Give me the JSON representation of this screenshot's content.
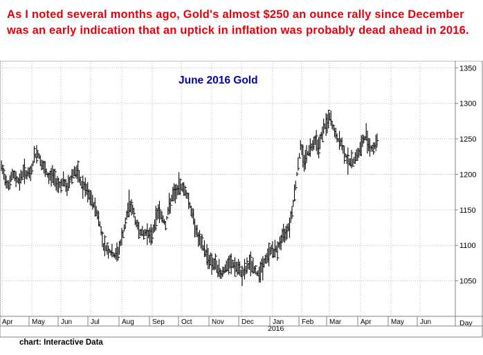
{
  "headline": "As I noted several months ago, Gold's almost $250 an ounce rally since December was an early indication that an uptick in inflation was probably dead ahead in 2016.",
  "credit": "chart: Interactive Data",
  "chart_data": {
    "type": "ohlc-bar",
    "title": "June 2016 Gold",
    "x_axis_unit_label": "Day",
    "year_label": "2016",
    "months": [
      "Apr",
      "May",
      "Jun",
      "Jul",
      "Aug",
      "Sep",
      "Oct",
      "Nov",
      "Dec",
      "Jan",
      "Feb",
      "Mar",
      "Apr",
      "May",
      "Jun"
    ],
    "y_ticks": [
      1050,
      1100,
      1150,
      1200,
      1250,
      1300,
      1350
    ],
    "ylim": [
      1000,
      1360
    ],
    "grid": true,
    "series": [
      {
        "name": "",
        "x": [
          0,
          0.5,
          1,
          1.5,
          2,
          2.5,
          3,
          3.5
        ],
        "y": [
          1210,
          1195,
          1185,
          1200,
          1195,
          1190,
          1205,
          1200
        ]
      },
      {
        "name": "",
        "x": [
          4,
          4.5,
          5,
          5.5,
          6,
          6.5,
          7,
          7.5
        ],
        "y": [
          1200,
          1225,
          1230,
          1215,
          1205,
          1195,
          1200,
          1190
        ]
      },
      {
        "name": "",
        "x": [
          8,
          8.5,
          9,
          9.5,
          10,
          10.5,
          11,
          11.5
        ],
        "y": [
          1185,
          1190,
          1180,
          1195,
          1205,
          1200,
          1185,
          1180
        ]
      },
      {
        "name": "",
        "x": [
          12,
          12.5,
          13,
          13.5,
          14,
          14.5,
          15,
          15.5
        ],
        "y": [
          1170,
          1160,
          1150,
          1130,
          1100,
          1095,
          1090,
          1085
        ]
      },
      {
        "name": "",
        "x": [
          16,
          16.5,
          17,
          17.5,
          18,
          18.5,
          19,
          19.5
        ],
        "y": [
          1090,
          1110,
          1130,
          1160,
          1150,
          1130,
          1120,
          1115
        ]
      },
      {
        "name": "",
        "x": [
          20,
          20.5,
          21,
          21.5,
          22,
          22.5,
          23,
          23.5
        ],
        "y": [
          1120,
          1110,
          1130,
          1150,
          1140,
          1130,
          1155,
          1170
        ]
      },
      {
        "name": "",
        "x": [
          24,
          24.5,
          25,
          25.5,
          26,
          26.5,
          27,
          27.5
        ],
        "y": [
          1175,
          1185,
          1180,
          1170,
          1150,
          1130,
          1110,
          1100
        ]
      },
      {
        "name": "",
        "x": [
          28,
          28.5,
          29,
          29.5,
          30,
          30.5,
          31,
          31.5
        ],
        "y": [
          1090,
          1080,
          1075,
          1070,
          1060,
          1065,
          1070,
          1075
        ]
      },
      {
        "name": "",
        "x": [
          32,
          32.5,
          33,
          33.5,
          34,
          34.5,
          35,
          35.5
        ],
        "y": [
          1070,
          1065,
          1060,
          1065,
          1075,
          1070,
          1060,
          1065
        ]
      },
      {
        "name": "",
        "x": [
          36,
          36.5,
          37,
          37.5,
          38,
          38.5,
          39,
          39.5
        ],
        "y": [
          1075,
          1085,
          1095,
          1090,
          1100,
          1110,
          1120,
          1130
        ]
      },
      {
        "name": "",
        "x": [
          40,
          40.5,
          41,
          41.5,
          42,
          42.5,
          43,
          43.5
        ],
        "y": [
          1160,
          1200,
          1240,
          1220,
          1230,
          1240,
          1250,
          1240
        ]
      },
      {
        "name": "",
        "x": [
          44,
          44.5,
          45,
          45.5,
          46,
          46.5,
          47,
          47.5
        ],
        "y": [
          1260,
          1270,
          1280,
          1265,
          1250,
          1245,
          1230,
          1220
        ]
      },
      {
        "name": "",
        "x": [
          48,
          48.5,
          49,
          49.5,
          50,
          50.5,
          51,
          51.5
        ],
        "y": [
          1215,
          1225,
          1230,
          1245,
          1255,
          1240,
          1235,
          1250
        ]
      }
    ]
  }
}
